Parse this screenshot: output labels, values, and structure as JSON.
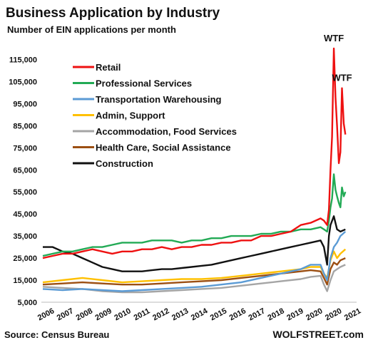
{
  "chart_data": {
    "type": "line",
    "title": "Business Application by Industry",
    "subtitle": "Number of EIN applications per month",
    "ylim": [
      5000,
      120000
    ],
    "xlim": [
      2006,
      2021.6
    ],
    "y_ticks": [
      "115,000",
      "105,000",
      "95,000",
      "85,000",
      "75,000",
      "65,000",
      "55,000",
      "45,000",
      "35,000",
      "25,000",
      "15,000",
      "5,000"
    ],
    "x_ticks": [
      "2006",
      "2007",
      "2008",
      "2009",
      "2010",
      "2011",
      "2012",
      "2013",
      "2014",
      "2015",
      "2016",
      "2017",
      "2018",
      "2019",
      "2020",
      "2020",
      "2021"
    ],
    "legend_position": "top-left",
    "annotations": [
      {
        "text": "WTF",
        "x": 2020.67,
        "y": 120000
      },
      {
        "text": "WTF",
        "x": 2021.08,
        "y": 102000
      }
    ],
    "series": [
      {
        "name": "Retail",
        "color": "#ee1111",
        "x": [
          2006,
          2006.5,
          2007,
          2007.5,
          2008,
          2008.5,
          2009,
          2009.5,
          2010,
          2010.5,
          2011,
          2011.5,
          2012,
          2012.5,
          2013,
          2013.5,
          2014,
          2014.5,
          2015,
          2015.5,
          2016,
          2016.5,
          2017,
          2017.5,
          2018,
          2018.5,
          2019,
          2019.5,
          2020,
          2020.17,
          2020.33,
          2020.42,
          2020.5,
          2020.58,
          2020.67,
          2020.75,
          2020.83,
          2020.92,
          2021,
          2021.08,
          2021.17,
          2021.25
        ],
        "values": [
          25000,
          26000,
          27000,
          27000,
          28000,
          29000,
          28000,
          27000,
          28000,
          28000,
          29000,
          29000,
          30000,
          29000,
          30000,
          30000,
          31000,
          31000,
          32000,
          32000,
          33000,
          33000,
          35000,
          35000,
          36000,
          37000,
          40000,
          41000,
          43000,
          42000,
          40000,
          47000,
          65000,
          80000,
          120000,
          98000,
          85000,
          68000,
          73000,
          102000,
          86000,
          81000
        ]
      },
      {
        "name": "Professional Services",
        "color": "#22aa55",
        "x": [
          2006,
          2006.5,
          2007,
          2007.5,
          2008,
          2008.5,
          2009,
          2009.5,
          2010,
          2010.5,
          2011,
          2011.5,
          2012,
          2012.5,
          2013,
          2013.5,
          2014,
          2014.5,
          2015,
          2015.5,
          2016,
          2016.5,
          2017,
          2017.5,
          2018,
          2018.5,
          2019,
          2019.5,
          2020,
          2020.17,
          2020.33,
          2020.42,
          2020.5,
          2020.58,
          2020.67,
          2020.75,
          2020.83,
          2020.92,
          2021,
          2021.08,
          2021.17,
          2021.25
        ],
        "values": [
          26000,
          27000,
          28000,
          28000,
          29000,
          30000,
          30000,
          31000,
          32000,
          32000,
          32000,
          33000,
          33000,
          33000,
          32000,
          33000,
          33000,
          34000,
          34000,
          35000,
          35000,
          35000,
          36000,
          36000,
          37000,
          37000,
          38000,
          38000,
          39000,
          38000,
          37000,
          42000,
          48000,
          52000,
          63000,
          56000,
          53000,
          50000,
          48000,
          57000,
          53000,
          55000
        ]
      },
      {
        "name": "Transportation Warehousing",
        "color": "#5b9bd5",
        "x": [
          2006,
          2007,
          2008,
          2009,
          2010,
          2011,
          2012,
          2013,
          2014,
          2015,
          2016,
          2017,
          2018,
          2019,
          2019.5,
          2020,
          2020.17,
          2020.33,
          2020.5,
          2020.67,
          2020.83,
          2021,
          2021.25
        ],
        "values": [
          11000,
          10500,
          11000,
          10500,
          10000,
          10500,
          11000,
          11500,
          12000,
          13000,
          14000,
          16000,
          18000,
          20000,
          22000,
          22000,
          18000,
          15000,
          25000,
          30000,
          32000,
          35000,
          37000
        ]
      },
      {
        "name": "Admin, Support",
        "color": "#ffc000",
        "x": [
          2006,
          2007,
          2008,
          2009,
          2010,
          2011,
          2012,
          2013,
          2014,
          2015,
          2016,
          2017,
          2018,
          2019,
          2019.5,
          2020,
          2020.17,
          2020.33,
          2020.5,
          2020.67,
          2020.83,
          2021,
          2021.25
        ],
        "values": [
          14000,
          15000,
          16000,
          15000,
          14000,
          14500,
          15000,
          15500,
          15500,
          16000,
          17000,
          18000,
          19000,
          20000,
          21000,
          21000,
          18000,
          16000,
          24000,
          28000,
          25000,
          27000,
          29000
        ]
      },
      {
        "name": "Accommodation, Food Services",
        "color": "#a5a5a5",
        "x": [
          2006,
          2007,
          2008,
          2009,
          2010,
          2011,
          2012,
          2013,
          2014,
          2015,
          2016,
          2017,
          2018,
          2019,
          2019.5,
          2020,
          2020.17,
          2020.33,
          2020.5,
          2020.67,
          2020.83,
          2021,
          2021.25
        ],
        "values": [
          12000,
          11500,
          11000,
          10000,
          9500,
          9500,
          10000,
          10500,
          11000,
          11500,
          12500,
          13500,
          14500,
          15500,
          16500,
          17000,
          13000,
          10000,
          15000,
          19000,
          20000,
          21000,
          22000
        ]
      },
      {
        "name": "Health Care, Social Assistance",
        "color": "#9c4f12",
        "x": [
          2006,
          2007,
          2008,
          2009,
          2010,
          2011,
          2012,
          2013,
          2014,
          2015,
          2016,
          2017,
          2018,
          2019,
          2019.5,
          2020,
          2020.17,
          2020.33,
          2020.5,
          2020.67,
          2020.83,
          2021,
          2021.25
        ],
        "values": [
          13000,
          13500,
          14000,
          13500,
          13000,
          13000,
          13500,
          14000,
          14500,
          15000,
          16000,
          17000,
          18000,
          19000,
          19500,
          19000,
          16000,
          13000,
          20000,
          23000,
          22000,
          24000,
          25000
        ]
      },
      {
        "name": "Construction",
        "color": "#111111",
        "x": [
          2006,
          2006.5,
          2007,
          2007.5,
          2008,
          2008.5,
          2009,
          2009.5,
          2010,
          2010.5,
          2011,
          2011.5,
          2012,
          2012.5,
          2013,
          2013.5,
          2014,
          2014.5,
          2015,
          2015.5,
          2016,
          2016.5,
          2017,
          2017.5,
          2018,
          2018.5,
          2019,
          2019.5,
          2020,
          2020.17,
          2020.33,
          2020.42,
          2020.5,
          2020.67,
          2020.83,
          2021,
          2021.25
        ],
        "values": [
          30000,
          30000,
          28000,
          27000,
          25000,
          23000,
          21000,
          20000,
          19000,
          19000,
          19000,
          19500,
          20000,
          20000,
          20500,
          21000,
          21500,
          22000,
          23000,
          24000,
          25000,
          26000,
          27000,
          28000,
          29000,
          30000,
          31000,
          32000,
          33000,
          30000,
          22000,
          35000,
          40000,
          44000,
          38000,
          37000,
          38000
        ]
      }
    ]
  },
  "footer": {
    "source": "Source: Census Bureau",
    "brand": "WOLFSTREET.com"
  }
}
